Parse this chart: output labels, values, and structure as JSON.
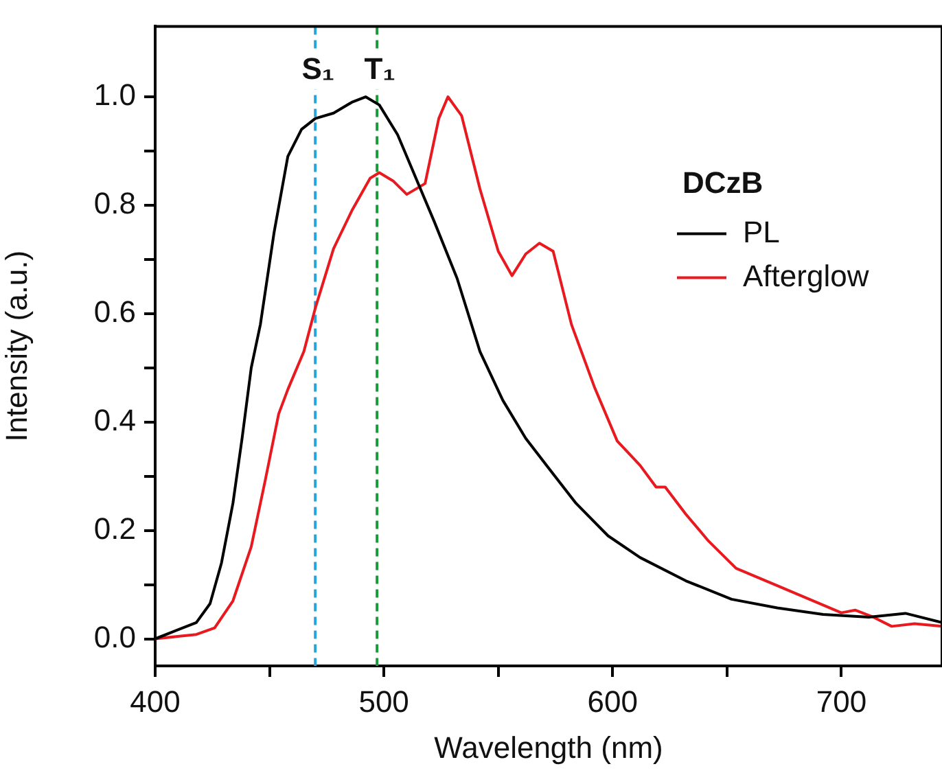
{
  "chart_data": {
    "type": "line",
    "xlabel": "Wavelength (nm)",
    "ylabel": "Intensity (a.u.)",
    "legend_title": "DCzB",
    "xlim": [
      400,
      744
    ],
    "ylim": [
      -0.05,
      1.13
    ],
    "xticks": [
      400,
      {
        "value": 450,
        "label": null
      },
      500,
      {
        "value": 550,
        "label": null
      },
      600,
      {
        "value": 650,
        "label": null
      },
      700
    ],
    "yticks": [
      {
        "value": 0,
        "label": "0.0"
      },
      {
        "value": 0.1,
        "label": null
      },
      {
        "value": 0.2,
        "label": "0.2"
      },
      {
        "value": 0.3,
        "label": null
      },
      {
        "value": 0.4,
        "label": "0.4"
      },
      {
        "value": 0.5,
        "label": null
      },
      {
        "value": 0.6,
        "label": "0.6"
      },
      {
        "value": 0.7,
        "label": null
      },
      {
        "value": 0.8,
        "label": "0.8"
      },
      {
        "value": 0.9,
        "label": null
      },
      {
        "value": 1.0,
        "label": "1.0"
      }
    ],
    "grid": false,
    "legend": "right",
    "marker": "none",
    "line_style": "solid",
    "ref_lines": [
      {
        "axis": "x",
        "value": 470,
        "label": "S₁",
        "color": "#29a3e0",
        "line_style": "dashed"
      },
      {
        "axis": "x",
        "value": 497,
        "label": "T₁",
        "color": "#1a9a3a",
        "line_style": "dashed"
      }
    ],
    "series": [
      {
        "name": "PL",
        "color": "#000000",
        "x": [
          400,
          418,
          424,
          429,
          434,
          438,
          442,
          446,
          452,
          458,
          464,
          470,
          478,
          486,
          492,
          498,
          506,
          514,
          522,
          532,
          542,
          552,
          562,
          572,
          584,
          598,
          612,
          632,
          652,
          672,
          692,
          712,
          728,
          744
        ],
        "values": [
          0.0,
          0.03,
          0.065,
          0.14,
          0.25,
          0.37,
          0.5,
          0.58,
          0.75,
          0.89,
          0.94,
          0.96,
          0.97,
          0.99,
          1.0,
          0.985,
          0.93,
          0.85,
          0.77,
          0.665,
          0.53,
          0.44,
          0.37,
          0.315,
          0.25,
          0.19,
          0.15,
          0.107,
          0.073,
          0.057,
          0.045,
          0.04,
          0.047,
          0.03
        ]
      },
      {
        "name": "Afterglow",
        "color": "#e8191f",
        "x": [
          400,
          418,
          426,
          434,
          442,
          448,
          454,
          458,
          465,
          470,
          478,
          486,
          494,
          498,
          504,
          510,
          518,
          524,
          528,
          534,
          542,
          550,
          556,
          562,
          568,
          574,
          582,
          592,
          602,
          612,
          619,
          623,
          632,
          642,
          654,
          672,
          686,
          700,
          706,
          714,
          722,
          732,
          744
        ],
        "values": [
          0.0,
          0.008,
          0.02,
          0.07,
          0.17,
          0.29,
          0.415,
          0.46,
          0.53,
          0.61,
          0.72,
          0.79,
          0.85,
          0.86,
          0.845,
          0.82,
          0.84,
          0.96,
          1.0,
          0.965,
          0.83,
          0.715,
          0.67,
          0.71,
          0.73,
          0.715,
          0.58,
          0.465,
          0.365,
          0.32,
          0.28,
          0.28,
          0.23,
          0.18,
          0.13,
          0.098,
          0.073,
          0.048,
          0.053,
          0.04,
          0.023,
          0.028,
          0.023
        ]
      }
    ]
  }
}
